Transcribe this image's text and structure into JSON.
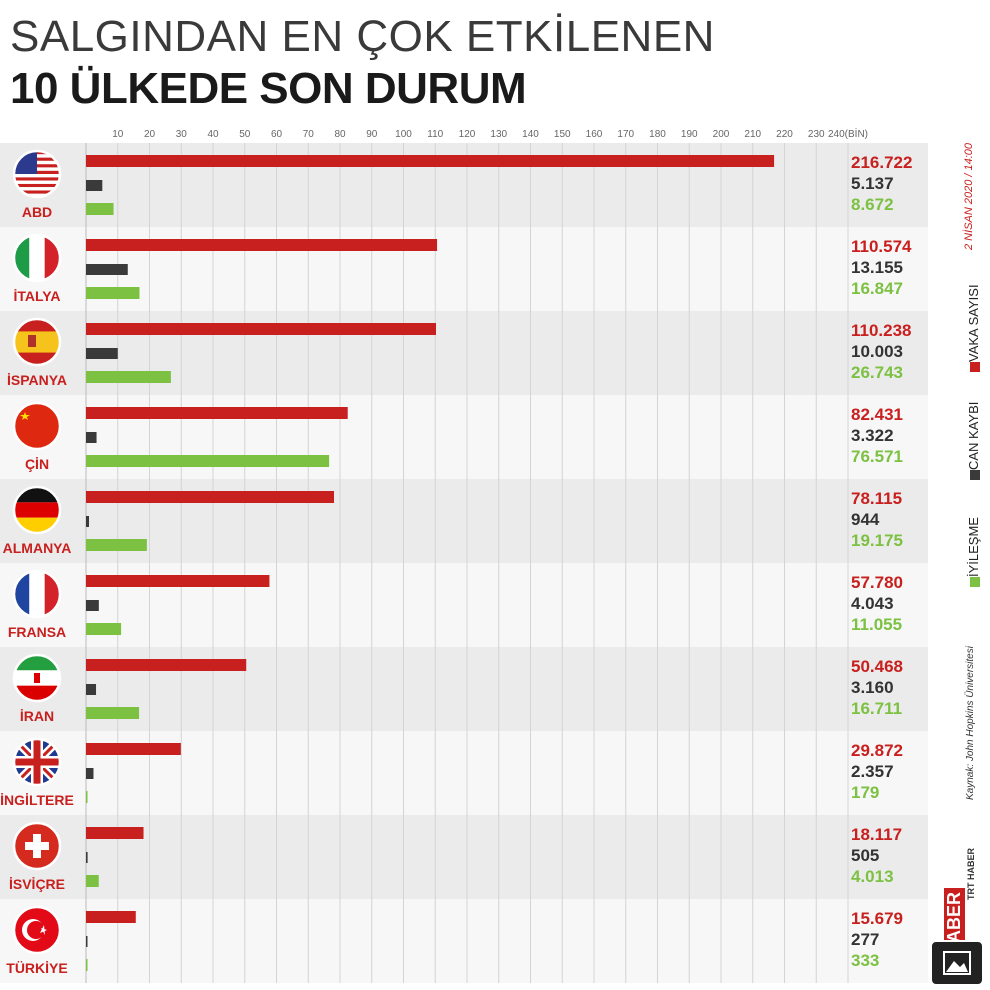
{
  "title_line1": "SALGINDAN EN ÇOK ETKİLENEN",
  "title_line2": "10 ÜLKEDE SON DURUM",
  "date_label": "2 NİSAN 2020 / 14:00",
  "source_label": "Kaynak: John Hopkins Üniversitesi",
  "logo_text": "HABER",
  "social_text": "TRT HABER",
  "colors": {
    "cases": "#c8201e",
    "deaths": "#3a3a3a",
    "recovered": "#7cc142"
  },
  "chart_data": {
    "type": "bar",
    "orientation": "horizontal",
    "title": "SALGINDAN EN ÇOK ETKİLENEN 10 ÜLKEDE SON DURUM",
    "x_unit": "(BİN)",
    "x_ticks": [
      10,
      20,
      30,
      40,
      50,
      60,
      70,
      80,
      90,
      100,
      110,
      120,
      130,
      140,
      150,
      160,
      170,
      180,
      190,
      200,
      210,
      220,
      230,
      240
    ],
    "xlim": [
      0,
      240
    ],
    "grid": true,
    "legend_position": "right",
    "categories": [
      "ABD",
      "İTALYA",
      "İSPANYA",
      "ÇİN",
      "ALMANYA",
      "FRANSA",
      "İRAN",
      "İNGİLTERE",
      "İSVİÇRE",
      "TÜRKİYE"
    ],
    "series": [
      {
        "name": "VAKA SAYISI",
        "values": [
          216722,
          110574,
          110238,
          82431,
          78115,
          57780,
          50468,
          29872,
          18117,
          15679
        ],
        "labels": [
          "216.722",
          "110.574",
          "110.238",
          "82.431",
          "78.115",
          "57.780",
          "50.468",
          "29.872",
          "18.117",
          "15.679"
        ]
      },
      {
        "name": "CAN KAYBI",
        "values": [
          5137,
          13155,
          10003,
          3322,
          944,
          4043,
          3160,
          2357,
          505,
          277
        ],
        "labels": [
          "5.137",
          "13.155",
          "10.003",
          "3.322",
          "944",
          "4.043",
          "3.160",
          "2.357",
          "505",
          "277"
        ]
      },
      {
        "name": "İYİLEŞME",
        "values": [
          8672,
          16847,
          26743,
          76571,
          19175,
          11055,
          16711,
          179,
          4013,
          333
        ],
        "labels": [
          "8.672",
          "16.847",
          "26.743",
          "76.571",
          "19.175",
          "11.055",
          "16.711",
          "179",
          "4.013",
          "333"
        ]
      }
    ]
  }
}
